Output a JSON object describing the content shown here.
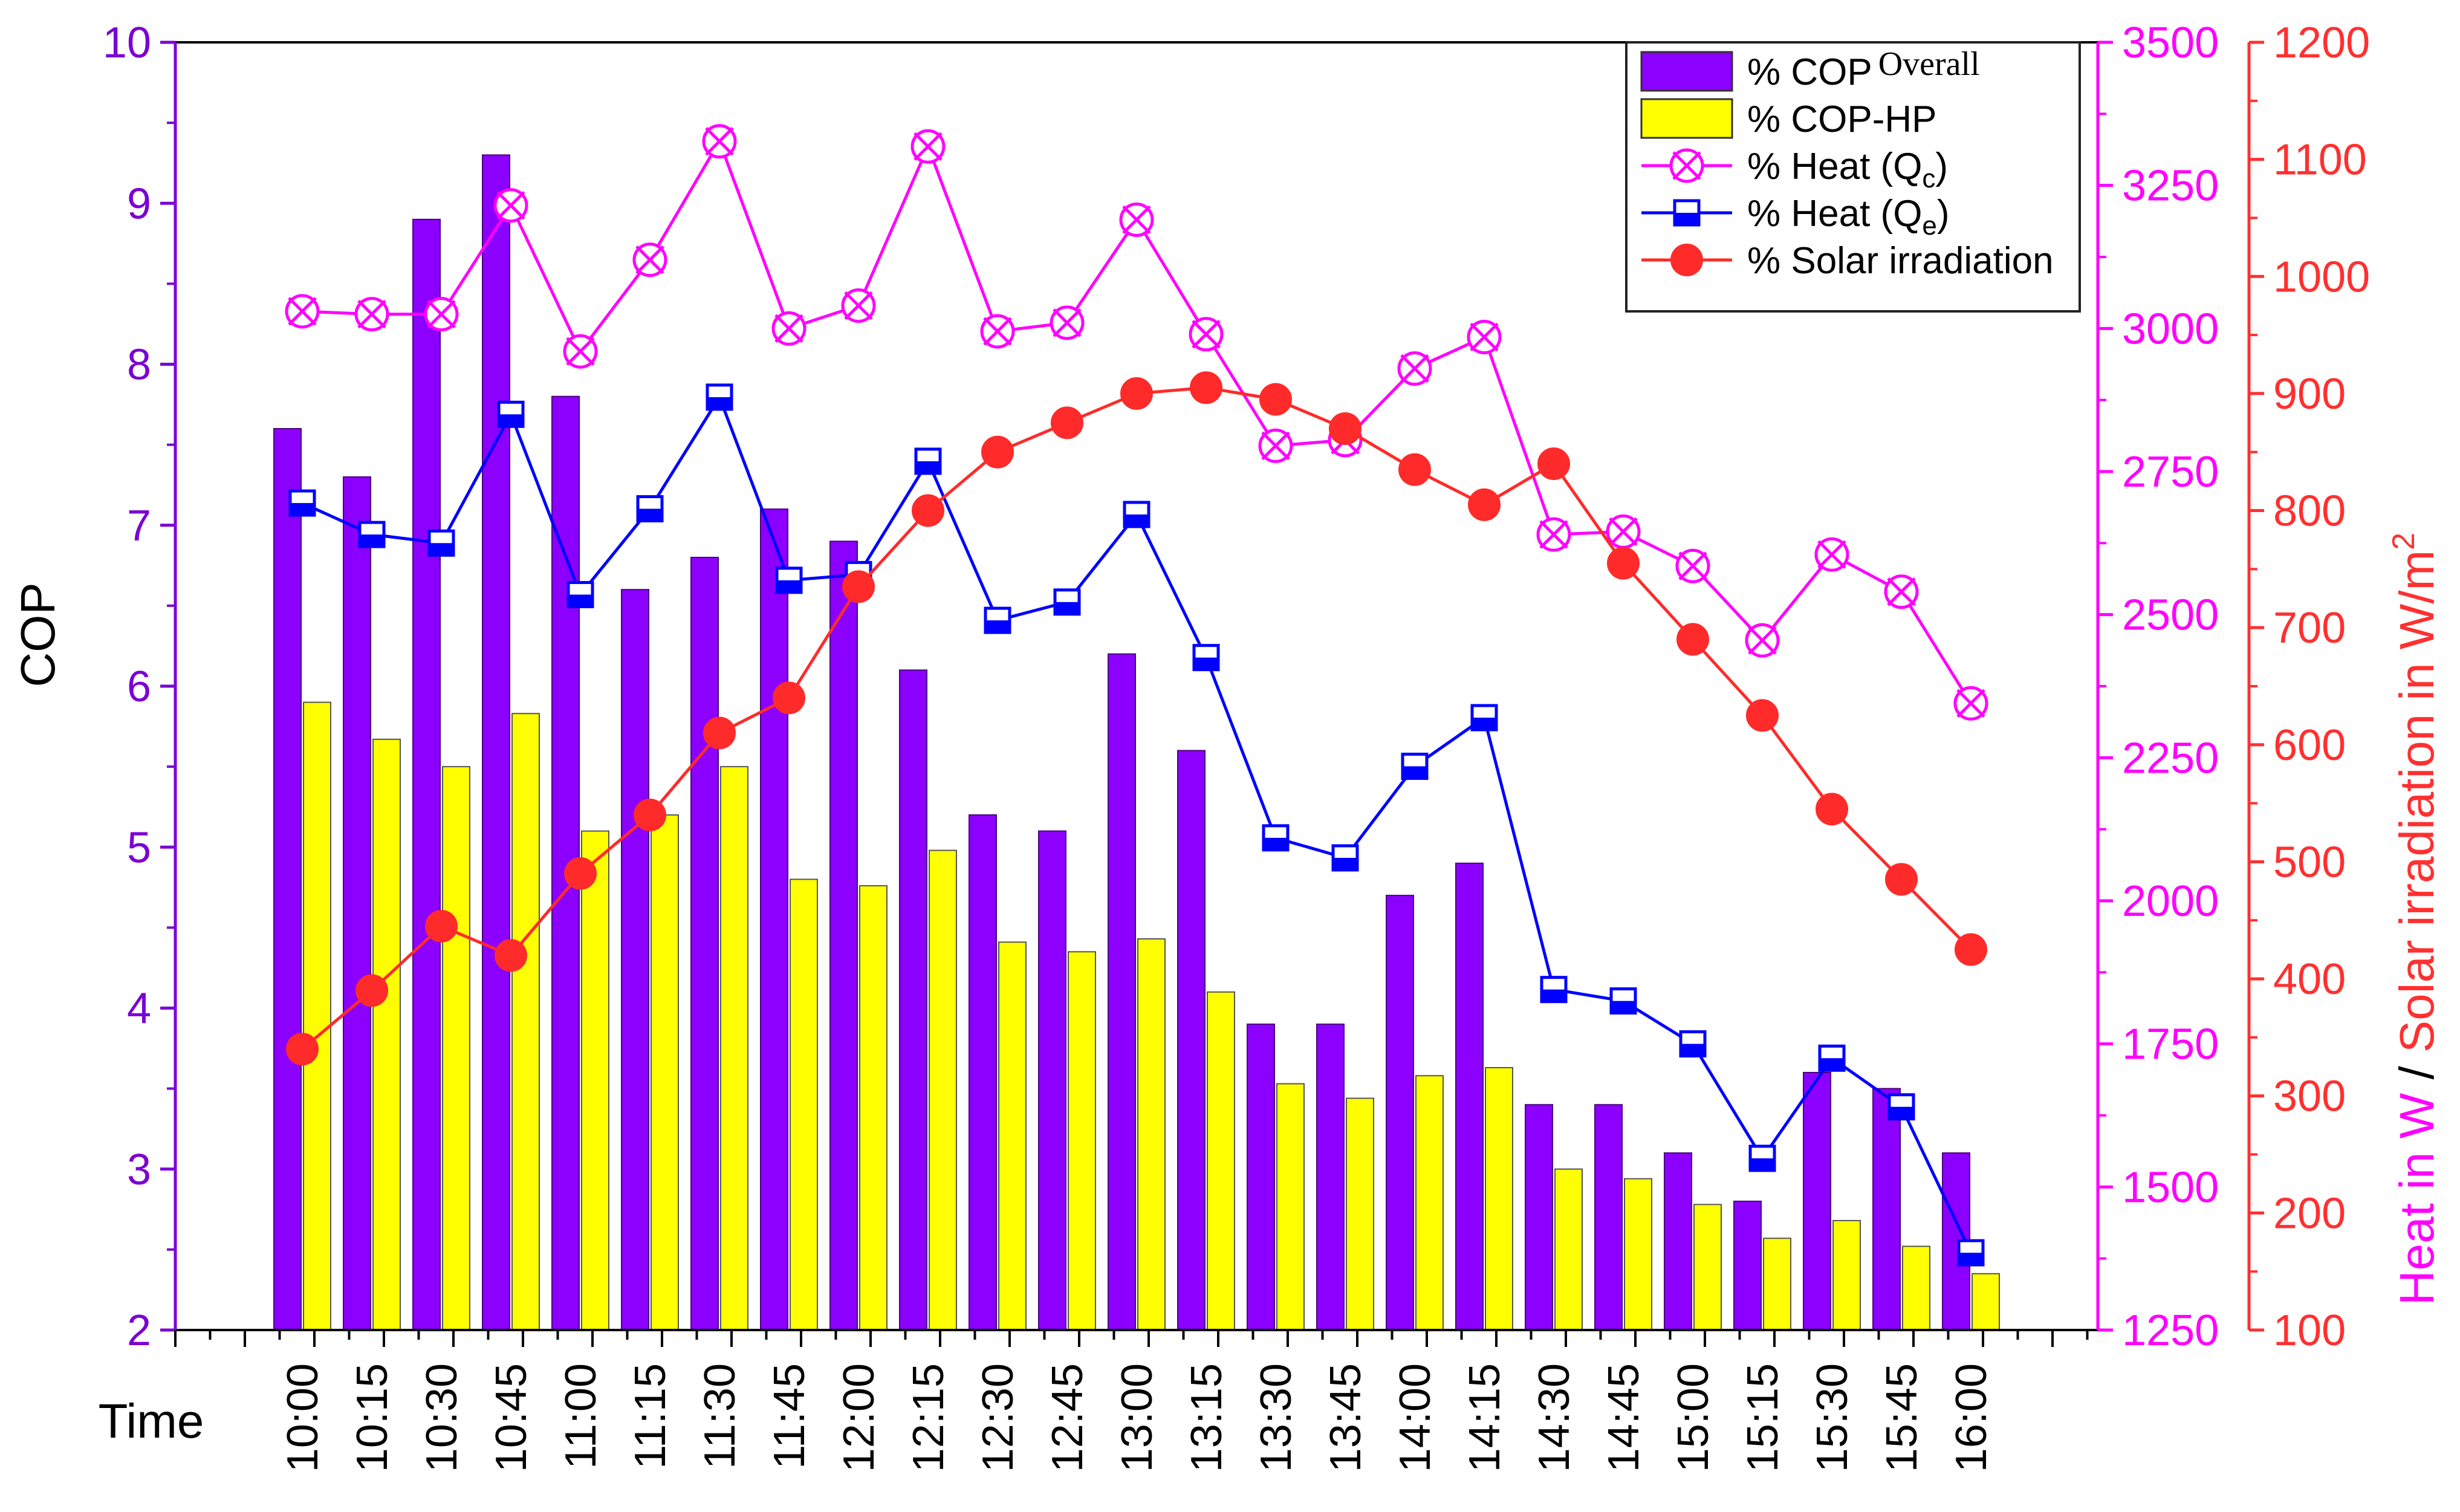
{
  "chart_data": {
    "type": "bar+line",
    "categories": [
      "10:00",
      "10:15",
      "10:30",
      "10:45",
      "11:00",
      "11:15",
      "11:30",
      "11:45",
      "12:00",
      "12:15",
      "12:30",
      "12:45",
      "13:00",
      "13:15",
      "13:30",
      "13:45",
      "14:00",
      "14:15",
      "14:30",
      "14:45",
      "15:00",
      "15:15",
      "15:30",
      "15:45",
      "16:00"
    ],
    "xlabel": "Time",
    "ylabel_left": "COP",
    "ylabel_right": {
      "part1": "Heat in W",
      "separator": " / ",
      "part2": "Solar irradiation in W/m",
      "superscript": "2"
    },
    "axes": {
      "cop": {
        "range": [
          2,
          10
        ],
        "ticks": [
          "2",
          "3",
          "4",
          "5",
          "6",
          "7",
          "8",
          "9",
          "10"
        ],
        "color": "#7B00D4"
      },
      "heat": {
        "range": [
          1250,
          3500
        ],
        "ticks": [
          "1250",
          "1500",
          "1750",
          "2000",
          "2250",
          "2500",
          "2750",
          "3000",
          "3250",
          "3500"
        ],
        "color": "#FF00FF"
      },
      "solar": {
        "range": [
          100,
          1200
        ],
        "ticks": [
          "100",
          "200",
          "300",
          "400",
          "500",
          "600",
          "700",
          "800",
          "900",
          "1000",
          "1100",
          "1200"
        ],
        "color": "#FF3030"
      }
    },
    "series": [
      {
        "name": "COP Overall",
        "label_prefix": "% COP",
        "label_main": "",
        "label_sub": "Overall",
        "kind": "bar",
        "axis": "cop",
        "color": "#8B00FF",
        "values": [
          7.6,
          7.3,
          8.9,
          9.3,
          7.8,
          6.6,
          6.8,
          7.1,
          6.9,
          6.1,
          5.2,
          5.1,
          6.2,
          5.6,
          3.9,
          3.9,
          4.7,
          4.9,
          3.4,
          3.4,
          3.1,
          2.8,
          3.6,
          3.5,
          3.1
        ]
      },
      {
        "name": "COP-HP",
        "label_prefix": "% COP-HP",
        "label_main": "",
        "label_sub": "",
        "kind": "bar",
        "axis": "cop",
        "color": "#FFFF00",
        "values": [
          5.9,
          5.67,
          5.5,
          5.83,
          5.1,
          5.2,
          5.5,
          4.8,
          4.76,
          4.98,
          4.41,
          4.35,
          4.43,
          4.1,
          3.53,
          3.44,
          3.58,
          3.63,
          3.0,
          2.94,
          2.78,
          2.57,
          2.68,
          2.52,
          2.35
        ]
      },
      {
        "name": "Heat (Qc)",
        "label_prefix": "% Heat (Q",
        "label_main": "",
        "label_sub": "c",
        "label_suffix": ")",
        "kind": "line",
        "marker": "x-circle",
        "axis": "heat",
        "color": "#FF00FF",
        "values": [
          3030,
          3025,
          3025,
          3215,
          2960,
          3120,
          3327,
          3000,
          3040,
          3318,
          2995,
          3010,
          3190,
          2990,
          2795,
          2805,
          2930,
          2985,
          2640,
          2645,
          2585,
          2455,
          2605,
          2540,
          2345
        ]
      },
      {
        "name": "Heat (Qe)",
        "label_prefix": "% Heat (Q",
        "label_main": "",
        "label_sub": "e",
        "label_suffix": ")",
        "kind": "line",
        "marker": "half-square",
        "axis": "heat",
        "color": "#0000FF",
        "values": [
          2695,
          2640,
          2625,
          2850,
          2535,
          2685,
          2880,
          2560,
          2570,
          2768,
          2490,
          2522,
          2675,
          2425,
          2110,
          2075,
          2235,
          2320,
          1845,
          1825,
          1750,
          1550,
          1725,
          1640,
          1385
        ]
      },
      {
        "name": "Solar irradiation",
        "label_prefix": "% Solar irradiation",
        "label_main": "",
        "label_sub": "",
        "kind": "line",
        "marker": "dot",
        "axis": "solar",
        "color": "#FF2A2A",
        "values": [
          340,
          390,
          445,
          420,
          490,
          540,
          610,
          640,
          735,
          800,
          850,
          875,
          900,
          905,
          895,
          870,
          835,
          805,
          840,
          755,
          690,
          625,
          545,
          485,
          425
        ]
      }
    ],
    "legend": "top-right"
  }
}
